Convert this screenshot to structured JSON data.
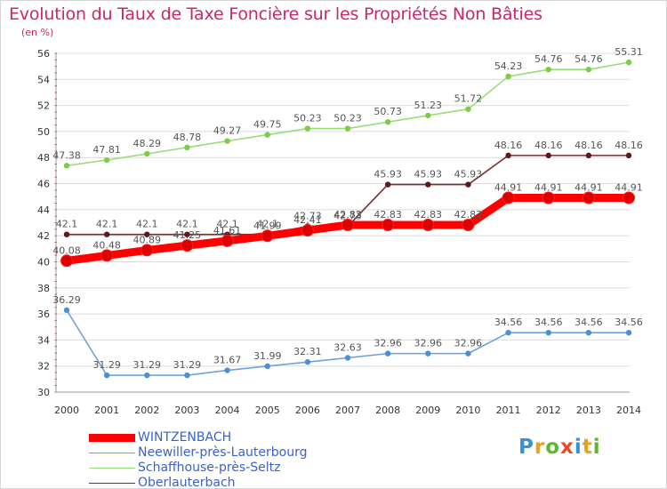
{
  "header": {
    "title": "Evolution du Taux de Taxe Foncière sur les Propriétés Non Bâties",
    "subtitle": "(en %)"
  },
  "colors": {
    "title": "#c8286a",
    "grid": "#dcdcdc",
    "axis_text": "#333333",
    "legend_text": "#3a62c8"
  },
  "chart_data": {
    "type": "line",
    "title": "Evolution du Taux de Taxe Foncière sur les Propriétés Non Bâties",
    "ylabel": "(en %)",
    "xlabel": "",
    "ylim": [
      30,
      56
    ],
    "yticks": [
      30,
      32,
      34,
      36,
      38,
      40,
      42,
      44,
      46,
      48,
      50,
      52,
      54,
      56
    ],
    "grid": true,
    "legend_position": "bottom-left",
    "categories": [
      "2000",
      "2001",
      "2002",
      "2003",
      "2004",
      "2005",
      "2006",
      "2007",
      "2008",
      "2009",
      "2010",
      "2011",
      "2012",
      "2013",
      "2014"
    ],
    "series": [
      {
        "name": "WINTZENBACH",
        "color": "#ff0000",
        "marker_color": "#dd0000",
        "style": "thick",
        "values": [
          40.08,
          40.48,
          40.89,
          41.25,
          41.61,
          41.99,
          42.41,
          42.83,
          42.83,
          42.83,
          42.83,
          44.91,
          44.91,
          44.91,
          44.91
        ],
        "labels": [
          "40.08",
          "40.48",
          "40.89",
          "41.25",
          "41.61",
          "41.99",
          "42.41",
          "42.83",
          "42.83",
          "42.83",
          "42.83",
          "44.91",
          "44.91",
          "44.91",
          "44.91"
        ]
      },
      {
        "name": "Neewiller-près-Lauterbourg",
        "color": "#6fa3d8",
        "marker_color": "#4a8fd8",
        "style": "thin",
        "values": [
          36.29,
          31.29,
          31.29,
          31.29,
          31.67,
          31.99,
          32.31,
          32.63,
          32.96,
          32.96,
          32.96,
          34.56,
          34.56,
          34.56,
          34.56
        ],
        "labels": [
          "36.29",
          "31.29",
          "31.29",
          "31.29",
          "31.67",
          "31.99",
          "32.31",
          "32.63",
          "32.96",
          "32.96",
          "32.96",
          "34.56",
          "34.56",
          "34.56",
          "34.56"
        ]
      },
      {
        "name": "Schaffhouse-près-Seltz",
        "color": "#99dd77",
        "marker_color": "#7ccc45",
        "style": "thin",
        "values": [
          47.38,
          47.81,
          48.29,
          48.78,
          49.27,
          49.75,
          50.23,
          50.23,
          50.73,
          51.23,
          51.72,
          54.23,
          54.76,
          54.76,
          55.31
        ],
        "labels": [
          "47.38",
          "47.81",
          "48.29",
          "48.78",
          "49.27",
          "49.75",
          "50.23",
          "50.23",
          "50.73",
          "51.23",
          "51.72",
          "54.23",
          "54.76",
          "54.76",
          "55.31"
        ]
      },
      {
        "name": "Oberlauterbach",
        "color": "#7a2e2e",
        "marker_color": "#5e1a1a",
        "style": "thin",
        "values": [
          42.1,
          42.1,
          42.1,
          42.1,
          42.1,
          42.1,
          42.73,
          42.73,
          45.93,
          45.93,
          45.93,
          48.16,
          48.16,
          48.16,
          48.16
        ],
        "labels": [
          "42.1",
          "42.1",
          "42.1",
          "42.1",
          "42.1",
          "42.1",
          "42.73",
          "42.73",
          "45.93",
          "45.93",
          "45.93",
          "48.16",
          "48.16",
          "48.16",
          "48.16"
        ]
      }
    ]
  },
  "logo": {
    "letters": [
      "P",
      "r",
      "o",
      "x",
      "i",
      "t",
      "i"
    ],
    "colors": [
      "#3a8fd8",
      "#e8a020",
      "#5cb82e",
      "#e84a2a",
      "#3a8fd8",
      "#e8a020",
      "#5cb82e"
    ]
  }
}
